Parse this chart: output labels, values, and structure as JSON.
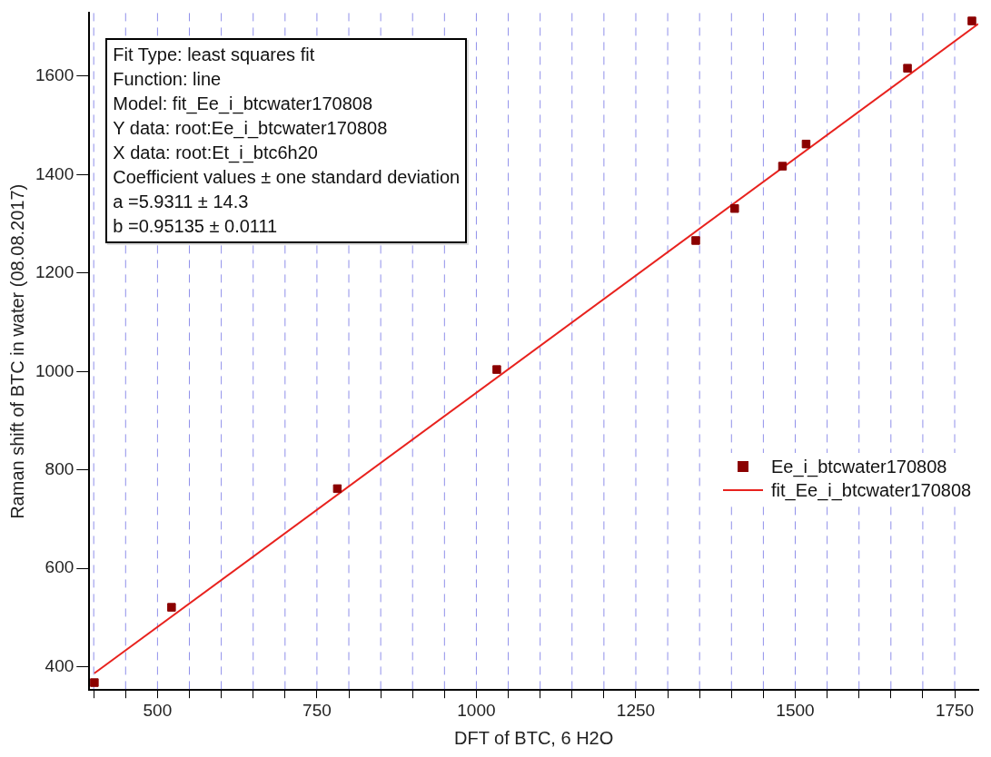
{
  "chart_data": {
    "type": "scatter",
    "xlabel": "DFT of BTC, 6 H2O",
    "ylabel": "Raman shift of BTC in water (08.08.2017)",
    "xlim": [
      393,
      1787
    ],
    "ylim": [
      353,
      1728
    ],
    "xticks": [
      {
        "value": 400,
        "label": null
      },
      {
        "value": 450,
        "label": null
      },
      500,
      {
        "value": 550,
        "label": null
      },
      {
        "value": 600,
        "label": null
      },
      {
        "value": 650,
        "label": null
      },
      {
        "value": 700,
        "label": null
      },
      750,
      {
        "value": 800,
        "label": null
      },
      {
        "value": 850,
        "label": null
      },
      {
        "value": 900,
        "label": null
      },
      {
        "value": 950,
        "label": null
      },
      1000,
      {
        "value": 1050,
        "label": null
      },
      {
        "value": 1100,
        "label": null
      },
      {
        "value": 1150,
        "label": null
      },
      {
        "value": 1200,
        "label": null
      },
      1250,
      {
        "value": 1300,
        "label": null
      },
      {
        "value": 1350,
        "label": null
      },
      {
        "value": 1400,
        "label": null
      },
      {
        "value": 1450,
        "label": null
      },
      1500,
      {
        "value": 1550,
        "label": null
      },
      {
        "value": 1600,
        "label": null
      },
      {
        "value": 1650,
        "label": null
      },
      {
        "value": 1700,
        "label": null
      },
      1750
    ],
    "yticks": [
      400,
      600,
      800,
      1000,
      1200,
      1400,
      1600
    ],
    "grid": "x",
    "legend": "right",
    "marker": "square",
    "series": [
      {
        "name": "Ee_i_btcwater170808",
        "type": "scatter",
        "color": "#8b0000",
        "x": [
          401,
          522,
          782,
          1032,
          1344,
          1405,
          1480,
          1517,
          1676,
          1777
        ],
        "values": [
          368,
          521,
          762,
          1004,
          1266,
          1331,
          1417,
          1462,
          1616,
          1712
        ]
      },
      {
        "name": "fit_Ee_i_btcwater170808",
        "type": "line",
        "color": "#e8221e",
        "marker": "none",
        "line_style": "solid",
        "x": [
          401,
          1787
        ],
        "values": [
          387,
          1706
        ]
      }
    ],
    "annotations": [
      "Fit Type: least squares fit",
      "Function: line",
      "Model: fit_Ee_i_btcwater170808",
      "Y data: root:Ee_i_btcwater170808",
      "X data: root:Et_i_btc6h20",
      "Coefficient values ± one standard deviation",
      "a =5.9311 ± 14.3",
      "b =0.95135 ± 0.0111"
    ]
  }
}
